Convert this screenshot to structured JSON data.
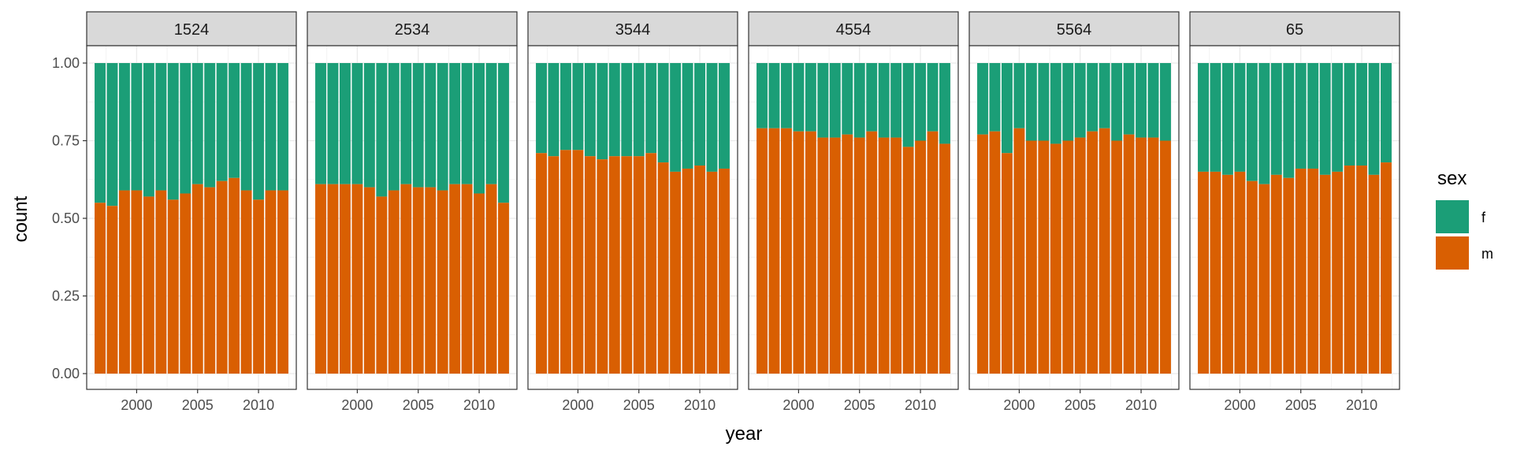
{
  "chart_data": {
    "type": "bar",
    "stacked": true,
    "position": "fill",
    "facet_by": "age",
    "xlabel": "year",
    "ylabel": "count",
    "ylim": [
      0,
      1
    ],
    "yticks": [
      "0.00",
      "0.25",
      "0.50",
      "0.75",
      "1.00"
    ],
    "xticks": [
      "2000",
      "2005",
      "2010"
    ],
    "years": [
      1997,
      1998,
      1999,
      2000,
      2001,
      2002,
      2003,
      2004,
      2005,
      2006,
      2007,
      2008,
      2009,
      2010,
      2011,
      2012
    ],
    "legend": {
      "title": "sex",
      "position": "right",
      "entries": [
        {
          "label": "f",
          "color": "#1b9e77"
        },
        {
          "label": "m",
          "color": "#d95f02"
        }
      ]
    },
    "facets": [
      {
        "label": "1524",
        "m_share": [
          0.55,
          0.54,
          0.59,
          0.59,
          0.57,
          0.59,
          0.56,
          0.58,
          0.61,
          0.6,
          0.62,
          0.63,
          0.59,
          0.56,
          0.59,
          0.59
        ]
      },
      {
        "label": "2534",
        "m_share": [
          0.61,
          0.61,
          0.61,
          0.61,
          0.6,
          0.57,
          0.59,
          0.61,
          0.6,
          0.6,
          0.59,
          0.61,
          0.61,
          0.58,
          0.61,
          0.55
        ]
      },
      {
        "label": "3544",
        "m_share": [
          0.71,
          0.7,
          0.72,
          0.72,
          0.7,
          0.69,
          0.7,
          0.7,
          0.7,
          0.71,
          0.68,
          0.65,
          0.66,
          0.67,
          0.65,
          0.66
        ]
      },
      {
        "label": "4554",
        "m_share": [
          0.79,
          0.79,
          0.79,
          0.78,
          0.78,
          0.76,
          0.76,
          0.77,
          0.76,
          0.78,
          0.76,
          0.76,
          0.73,
          0.75,
          0.78,
          0.74
        ]
      },
      {
        "label": "5564",
        "m_share": [
          0.77,
          0.78,
          0.71,
          0.79,
          0.75,
          0.75,
          0.74,
          0.75,
          0.76,
          0.78,
          0.79,
          0.75,
          0.77,
          0.76,
          0.76,
          0.75
        ]
      },
      {
        "label": "65",
        "m_share": [
          0.65,
          0.65,
          0.64,
          0.65,
          0.62,
          0.61,
          0.64,
          0.63,
          0.66,
          0.66,
          0.64,
          0.65,
          0.67,
          0.67,
          0.64,
          0.68
        ]
      }
    ]
  }
}
